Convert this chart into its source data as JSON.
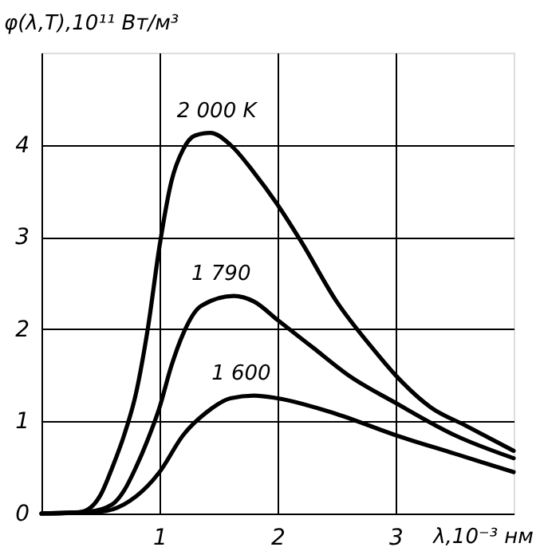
{
  "chart_data": {
    "type": "line",
    "xlabel": "λ,10⁻³ нм",
    "ylabel": "φ(λ,T),10¹¹ Вт/м³",
    "xlim": [
      0,
      4
    ],
    "ylim": [
      0,
      5
    ],
    "xticks": [
      {
        "value": 0,
        "label": null
      },
      1,
      2,
      3
    ],
    "yticks": [
      0,
      1,
      2,
      3,
      4
    ],
    "grid": true,
    "legend": false,
    "marker": "none",
    "line_style": "solid",
    "series": [
      {
        "name": "2 000 K",
        "color": "#000000",
        "x": [
          0,
          0.3,
          0.4,
          0.5,
          0.6,
          0.7,
          0.8,
          0.9,
          1.0,
          1.1,
          1.2,
          1.3,
          1.43,
          1.6,
          1.8,
          2.0,
          2.2,
          2.5,
          2.8,
          3.0,
          3.3,
          3.6,
          4.0
        ],
        "values": [
          0,
          0.01,
          0.05,
          0.2,
          0.5,
          0.85,
          1.3,
          2.0,
          2.9,
          3.6,
          3.95,
          4.1,
          4.13,
          4.0,
          3.7,
          3.35,
          2.95,
          2.3,
          1.8,
          1.5,
          1.15,
          0.95,
          0.68
        ]
      },
      {
        "name": "1 790",
        "color": "#000000",
        "x": [
          0,
          0.4,
          0.6,
          0.7,
          0.8,
          0.9,
          1.0,
          1.1,
          1.2,
          1.35,
          1.63,
          1.8,
          2.0,
          2.3,
          2.6,
          3.0,
          3.5,
          4.0
        ],
        "values": [
          0,
          0.02,
          0.1,
          0.25,
          0.5,
          0.8,
          1.15,
          1.6,
          1.95,
          2.25,
          2.36,
          2.3,
          2.1,
          1.8,
          1.5,
          1.2,
          0.85,
          0.6
        ]
      },
      {
        "name": "1 600",
        "color": "#000000",
        "x": [
          0,
          0.5,
          0.7,
          0.9,
          1.0,
          1.2,
          1.4,
          1.6,
          1.8,
          2.0,
          2.5,
          3.0,
          3.5,
          4.0
        ],
        "values": [
          0,
          0.02,
          0.1,
          0.3,
          0.45,
          0.85,
          1.1,
          1.25,
          1.28,
          1.25,
          1.08,
          0.85,
          0.65,
          0.45
        ]
      }
    ]
  }
}
